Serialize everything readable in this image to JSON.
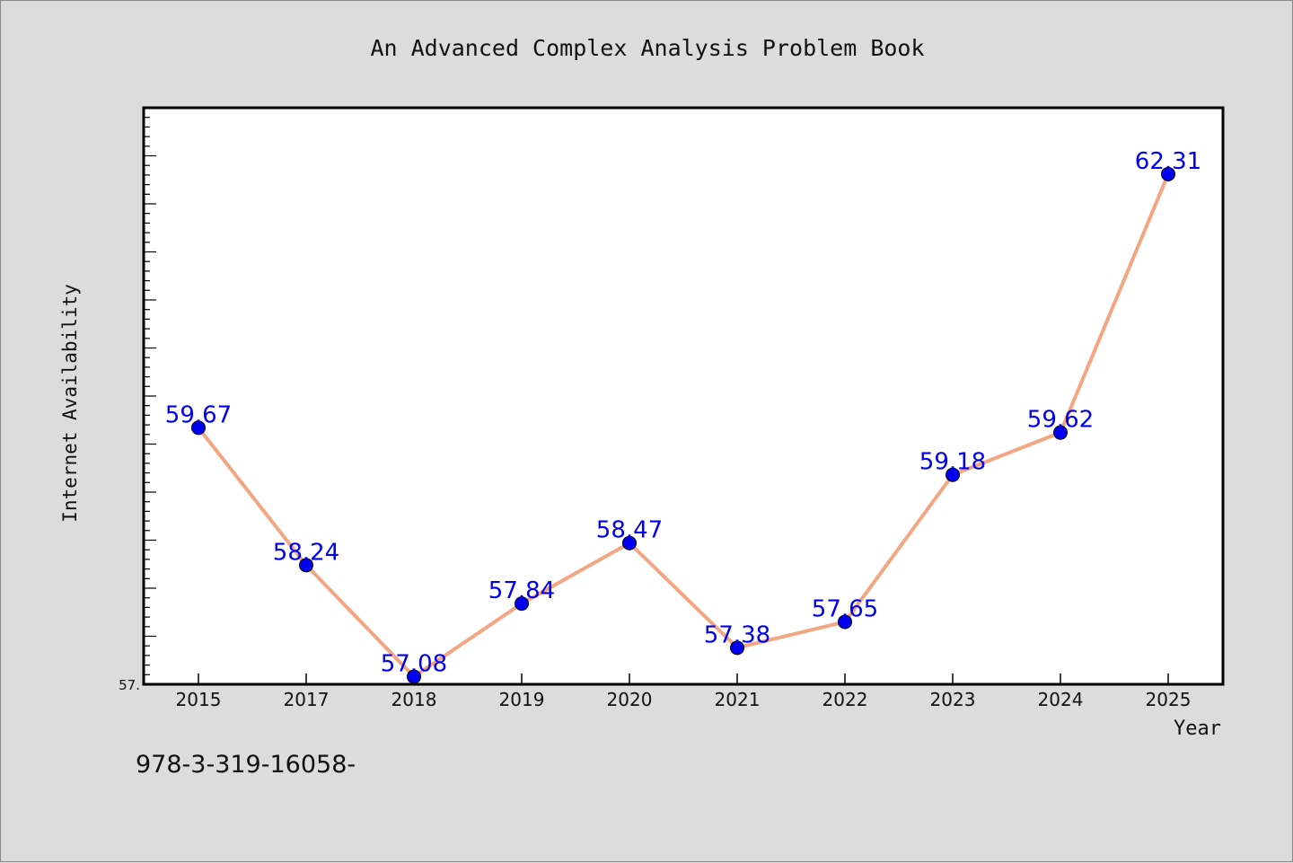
{
  "chart_data": {
    "type": "line",
    "title": "An Advanced Complex Analysis Problem Book",
    "xlabel": "Year",
    "ylabel": "Internet Availability",
    "categories": [
      "2015",
      "2017",
      "2018",
      "2019",
      "2020",
      "2021",
      "2022",
      "2023",
      "2024",
      "2025"
    ],
    "series": [
      {
        "values": [
          59.67,
          58.24,
          57.08,
          57.84,
          58.47,
          57.38,
          57.65,
          59.18,
          59.62,
          62.31
        ],
        "labels": [
          "59.67",
          "58.24",
          "57.08",
          "57.84",
          "58.47",
          "57.38",
          "57.65",
          "59.18",
          "59.62",
          "62.31"
        ],
        "line_color": "#f4a582",
        "marker_color": "#0000ee",
        "label_color": "#0000ee"
      }
    ],
    "ylim": [
      57.0,
      63.0
    ],
    "y_major_tick_step": 0.5,
    "y_minor_tick_step": 0.1,
    "y_tick_labels": [
      {
        "value": 57.0,
        "label": "57."
      }
    ],
    "grid": false,
    "plot_background": "#ffffff"
  },
  "footer": {
    "text": "978-3-319-16058-"
  }
}
